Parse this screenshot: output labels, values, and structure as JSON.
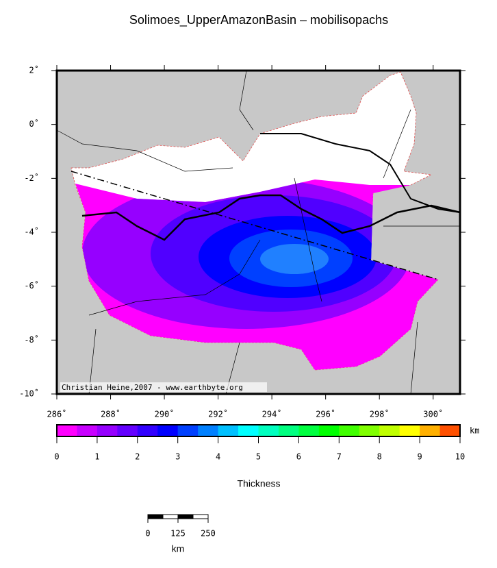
{
  "title": "Solimoes_UpperAmazonBasin – mobilisopachs",
  "credit": "Christian Heine,2007 - www.earthbyte.org",
  "map": {
    "lon_range": [
      286,
      301
    ],
    "lat_range": [
      -10,
      2
    ],
    "lon_ticks": [
      {
        "value": 286,
        "label": "286˚"
      },
      {
        "value": 288,
        "label": "288˚"
      },
      {
        "value": 290,
        "label": "290˚"
      },
      {
        "value": 292,
        "label": "292˚"
      },
      {
        "value": 294,
        "label": "294˚"
      },
      {
        "value": 296,
        "label": "296˚"
      },
      {
        "value": 298,
        "label": "298˚"
      },
      {
        "value": 300,
        "label": "300˚"
      }
    ],
    "lat_ticks": [
      {
        "value": 2,
        "label": "2˚"
      },
      {
        "value": 0,
        "label": "0˚"
      },
      {
        "value": -2,
        "label": "-2˚"
      },
      {
        "value": -4,
        "label": "-4˚"
      },
      {
        "value": -6,
        "label": "-6˚"
      },
      {
        "value": -8,
        "label": "-8˚"
      },
      {
        "value": -10,
        "label": "-10˚"
      }
    ]
  },
  "colorbar": {
    "label": "Thickness",
    "unit": "km",
    "range": [
      0,
      10
    ],
    "ticks": [
      0,
      1,
      2,
      3,
      4,
      5,
      6,
      7,
      8,
      9,
      10
    ],
    "colors": [
      "#ff00ff",
      "#c800ff",
      "#9600ff",
      "#6400ff",
      "#3200ff",
      "#0000ff",
      "#0040ff",
      "#0080ff",
      "#00c0ff",
      "#00ffff",
      "#00ffbf",
      "#00ff80",
      "#00ff40",
      "#00ff00",
      "#40ff00",
      "#80ff00",
      "#c0ff00",
      "#ffff00",
      "#ffb000",
      "#ff5000"
    ]
  },
  "scale_bar": {
    "range": [
      0,
      250
    ],
    "ticks": [
      0,
      125,
      250
    ],
    "unit": "km"
  }
}
